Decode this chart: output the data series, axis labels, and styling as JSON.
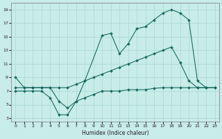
{
  "bg_color": "#c8ece8",
  "grid_color": "#a8d8d0",
  "line_color": "#1a6b60",
  "xlabel": "Humidex (Indice chaleur)",
  "xlim_min": -0.5,
  "xlim_max": 23.5,
  "ylim_min": 2.5,
  "ylim_max": 20.0,
  "xticks": [
    0,
    1,
    2,
    3,
    4,
    5,
    6,
    7,
    8,
    9,
    10,
    11,
    12,
    13,
    14,
    15,
    16,
    17,
    18,
    19,
    20,
    21,
    22,
    23
  ],
  "yticks": [
    3,
    5,
    7,
    9,
    11,
    13,
    15,
    17,
    19
  ],
  "line1_x": [
    0,
    1,
    2,
    3,
    4,
    5,
    6,
    7,
    8,
    10,
    11,
    12,
    13,
    14,
    15,
    16,
    17,
    18,
    19,
    20,
    21,
    22
  ],
  "line1_y": [
    9,
    7.5,
    7.5,
    7.5,
    7.5,
    5.5,
    4.5,
    5.5,
    8.5,
    15.2,
    15.5,
    12.5,
    14.0,
    16.2,
    16.5,
    17.5,
    18.5,
    19.0,
    18.5,
    17.5,
    8.5,
    7.5
  ],
  "line2_x": [
    0,
    1,
    2,
    3,
    4,
    5,
    6,
    7,
    8,
    9,
    10,
    11,
    12,
    13,
    14,
    15,
    16,
    17,
    18,
    19,
    20,
    21,
    22,
    23
  ],
  "line2_y": [
    7.5,
    7.5,
    7.5,
    7.5,
    7.5,
    7.5,
    7.5,
    8.0,
    8.5,
    9.0,
    9.5,
    10.0,
    10.5,
    11.0,
    11.5,
    12.0,
    12.5,
    13.0,
    13.5,
    11.2,
    8.5,
    7.5,
    7.5,
    7.5
  ],
  "line3_x": [
    0,
    1,
    2,
    3,
    4,
    5,
    6,
    7,
    8,
    9,
    10,
    11,
    12,
    13,
    14,
    15,
    16,
    17,
    18,
    19,
    20,
    21,
    22,
    23
  ],
  "line3_y": [
    7.0,
    7.0,
    7.0,
    7.0,
    6.0,
    3.5,
    3.5,
    5.5,
    6.0,
    6.5,
    7.0,
    7.0,
    7.0,
    7.2,
    7.2,
    7.2,
    7.4,
    7.5,
    7.5,
    7.5,
    7.5,
    7.5,
    7.5,
    7.5
  ]
}
